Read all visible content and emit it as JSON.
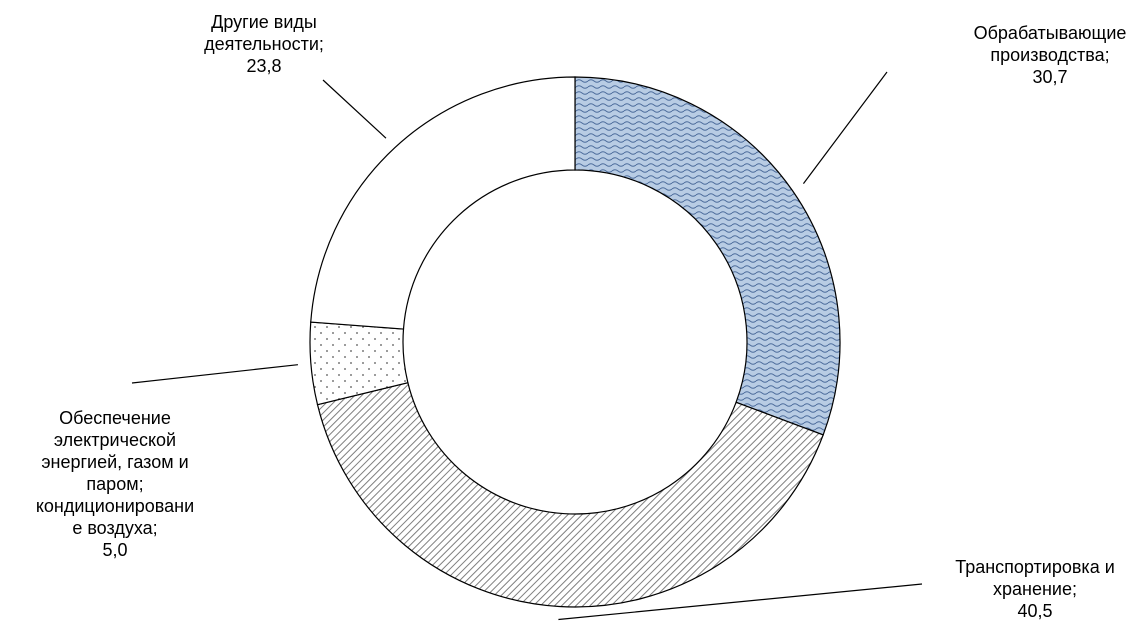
{
  "chart_data": {
    "type": "pie",
    "variant": "donut",
    "title": "",
    "legend": "none",
    "slices": [
      {
        "label": "Обрабатывающие производства",
        "value": 30.7,
        "label_lines": [
          "Обрабатывающие",
          "производства;",
          "30,7"
        ],
        "fill": "wavy-blue"
      },
      {
        "label": "Транспортировка и хранение",
        "value": 40.5,
        "label_lines": [
          "Транспортировка и",
          "хранение;",
          "40,5"
        ],
        "fill": "diagonal-hatch"
      },
      {
        "label": "Обеспечение электрической энергией, газом и паром; кондиционирование воздуха",
        "value": 5.0,
        "label_lines": [
          "Обеспечение",
          "электрической",
          "энергией, газом и",
          "паром;",
          "кондиционировани",
          "е воздуха;",
          "5,0"
        ],
        "fill": "dots"
      },
      {
        "label": "Другие виды деятельности",
        "value": 23.8,
        "label_lines": [
          "Другие виды",
          "деятельности;",
          "23,8"
        ],
        "fill": "white"
      }
    ],
    "colors": {
      "wavy_fill": "#b8cce4",
      "wavy_stroke": "#4a6a9a",
      "hatch_stroke": "#7f7f7f",
      "dots": "#555555",
      "outline": "#000000"
    }
  }
}
